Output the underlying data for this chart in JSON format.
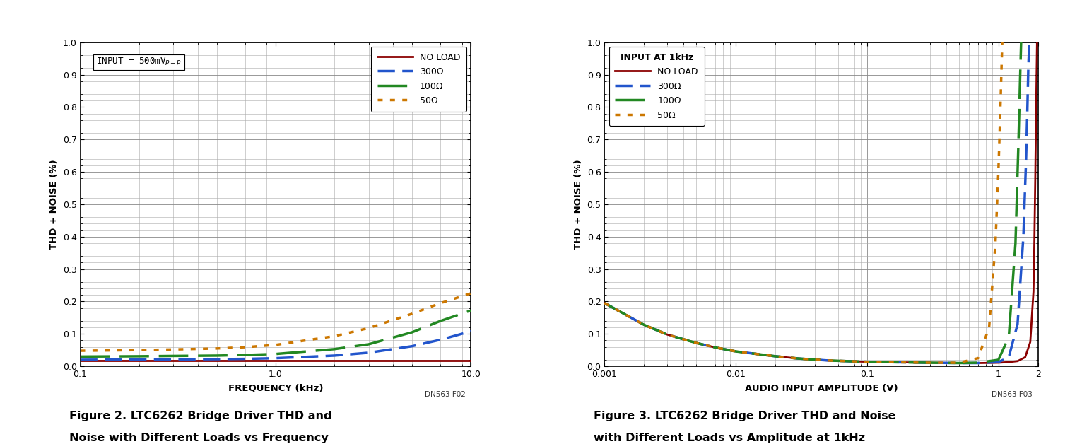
{
  "fig2": {
    "xlabel": "FREQUENCY (kHz)",
    "ylabel": "THD + NOISE (%)",
    "xlim": [
      0.1,
      10
    ],
    "ylim": [
      0,
      1.0
    ],
    "yticks": [
      0,
      0.1,
      0.2,
      0.3,
      0.4,
      0.5,
      0.6,
      0.7,
      0.8,
      0.9,
      1.0
    ],
    "figcode": "DN563 F02",
    "caption1": "Figure 2. LTC6262 Bridge Driver THD and",
    "caption2": "Noise with Different Loads vs Frequency",
    "series": [
      {
        "label": "NO LOAD",
        "color": "#8B0000",
        "linestyle": "solid",
        "linewidth": 2.0,
        "x": [
          0.1,
          0.2,
          0.3,
          0.5,
          0.7,
          1.0,
          2.0,
          3.0,
          5.0,
          7.0,
          10.0
        ],
        "y": [
          0.018,
          0.018,
          0.018,
          0.018,
          0.018,
          0.018,
          0.018,
          0.018,
          0.018,
          0.018,
          0.018
        ]
      },
      {
        "label": "300Ω",
        "color": "#2255CC",
        "linestyle": "dashed_short",
        "linewidth": 2.5,
        "x": [
          0.1,
          0.2,
          0.3,
          0.5,
          0.7,
          1.0,
          2.0,
          3.0,
          5.0,
          7.0,
          10.0
        ],
        "y": [
          0.02,
          0.021,
          0.021,
          0.022,
          0.023,
          0.025,
          0.033,
          0.042,
          0.062,
          0.082,
          0.108
        ]
      },
      {
        "label": "100Ω",
        "color": "#228822",
        "linestyle": "dashed_long",
        "linewidth": 2.5,
        "x": [
          0.1,
          0.2,
          0.3,
          0.5,
          0.7,
          1.0,
          2.0,
          3.0,
          5.0,
          7.0,
          10.0
        ],
        "y": [
          0.03,
          0.031,
          0.032,
          0.033,
          0.035,
          0.038,
          0.053,
          0.068,
          0.105,
          0.14,
          0.172
        ]
      },
      {
        "label": "50Ω",
        "color": "#CC7700",
        "linestyle": "dotted",
        "linewidth": 2.5,
        "x": [
          0.1,
          0.2,
          0.3,
          0.5,
          0.7,
          1.0,
          2.0,
          3.0,
          5.0,
          7.0,
          10.0
        ],
        "y": [
          0.048,
          0.05,
          0.052,
          0.055,
          0.059,
          0.066,
          0.093,
          0.118,
          0.162,
          0.195,
          0.225
        ]
      }
    ]
  },
  "fig3": {
    "xlabel": "AUDIO INPUT AMPLITUDE (V)",
    "ylabel": "THD + NOISE (%)",
    "xlim": [
      0.001,
      2.0
    ],
    "ylim": [
      0,
      1.0
    ],
    "yticks": [
      0,
      0.1,
      0.2,
      0.3,
      0.4,
      0.5,
      0.6,
      0.7,
      0.8,
      0.9,
      1.0
    ],
    "figcode": "DN563 F03",
    "caption1": "Figure 3. LTC6262 Bridge Driver THD and Noise",
    "caption2": "with Different Loads vs Amplitude at 1kHz",
    "series": [
      {
        "label": "NO LOAD",
        "color": "#8B0000",
        "linestyle": "solid",
        "linewidth": 2.0,
        "x": [
          0.001,
          0.002,
          0.003,
          0.005,
          0.007,
          0.01,
          0.02,
          0.03,
          0.05,
          0.07,
          0.1,
          0.2,
          0.3,
          0.5,
          0.7,
          1.0,
          1.2,
          1.4,
          1.6,
          1.75,
          1.85,
          1.88,
          1.91,
          1.94,
          1.97
        ],
        "y": [
          0.195,
          0.128,
          0.098,
          0.072,
          0.058,
          0.046,
          0.031,
          0.024,
          0.018,
          0.016,
          0.014,
          0.012,
          0.011,
          0.01,
          0.01,
          0.011,
          0.013,
          0.016,
          0.028,
          0.075,
          0.23,
          0.38,
          0.58,
          0.8,
          1.0
        ]
      },
      {
        "label": "300Ω",
        "color": "#2255CC",
        "linestyle": "dashed_short",
        "linewidth": 2.5,
        "x": [
          0.001,
          0.002,
          0.003,
          0.005,
          0.007,
          0.01,
          0.02,
          0.03,
          0.05,
          0.07,
          0.1,
          0.2,
          0.3,
          0.5,
          0.7,
          1.0,
          1.2,
          1.4,
          1.55,
          1.62,
          1.66,
          1.69,
          1.72
        ],
        "y": [
          0.195,
          0.128,
          0.098,
          0.072,
          0.058,
          0.046,
          0.031,
          0.024,
          0.018,
          0.016,
          0.014,
          0.012,
          0.011,
          0.01,
          0.01,
          0.013,
          0.028,
          0.13,
          0.4,
          0.62,
          0.78,
          0.92,
          1.0
        ]
      },
      {
        "label": "100Ω",
        "color": "#228822",
        "linestyle": "dashed_long",
        "linewidth": 2.5,
        "x": [
          0.001,
          0.002,
          0.003,
          0.005,
          0.007,
          0.01,
          0.02,
          0.03,
          0.05,
          0.07,
          0.1,
          0.2,
          0.3,
          0.5,
          0.7,
          1.0,
          1.2,
          1.35,
          1.42,
          1.46,
          1.49
        ],
        "y": [
          0.195,
          0.128,
          0.098,
          0.072,
          0.058,
          0.046,
          0.031,
          0.024,
          0.018,
          0.016,
          0.014,
          0.012,
          0.011,
          0.01,
          0.011,
          0.02,
          0.09,
          0.38,
          0.68,
          0.87,
          1.0
        ]
      },
      {
        "label": "50Ω",
        "color": "#CC7700",
        "linestyle": "dotted",
        "linewidth": 2.5,
        "x": [
          0.001,
          0.002,
          0.003,
          0.005,
          0.007,
          0.01,
          0.02,
          0.03,
          0.05,
          0.07,
          0.1,
          0.2,
          0.3,
          0.5,
          0.7,
          0.85,
          0.95,
          1.0,
          1.04,
          1.07
        ],
        "y": [
          0.195,
          0.128,
          0.098,
          0.072,
          0.058,
          0.046,
          0.031,
          0.024,
          0.018,
          0.016,
          0.014,
          0.012,
          0.011,
          0.011,
          0.025,
          0.12,
          0.38,
          0.6,
          0.82,
          1.0
        ]
      }
    ]
  }
}
